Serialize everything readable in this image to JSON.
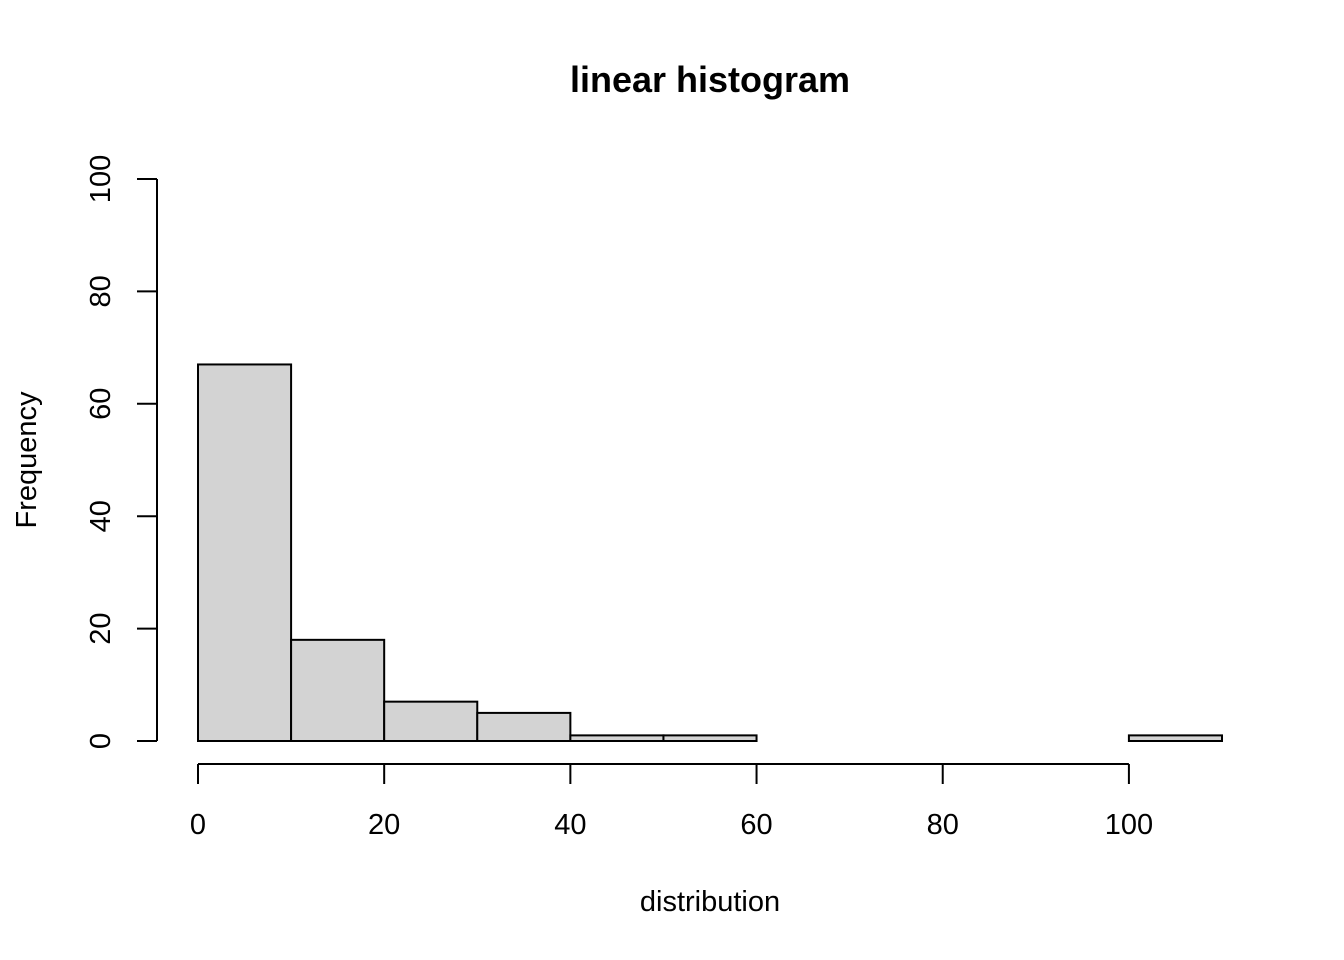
{
  "chart_data": {
    "type": "bar",
    "title": "linear histogram",
    "xlabel": "distribution",
    "ylabel": "Frequency",
    "xlim": [
      0,
      110
    ],
    "ylim": [
      0,
      100
    ],
    "xticks": [
      "0",
      "20",
      "40",
      "60",
      "80",
      "100"
    ],
    "yticks": [
      "0",
      "20",
      "40",
      "60",
      "80",
      "100"
    ],
    "bins": [
      {
        "from": 0,
        "to": 10,
        "count": 67
      },
      {
        "from": 10,
        "to": 20,
        "count": 18
      },
      {
        "from": 20,
        "to": 30,
        "count": 7
      },
      {
        "from": 30,
        "to": 40,
        "count": 5
      },
      {
        "from": 40,
        "to": 50,
        "count": 1
      },
      {
        "from": 50,
        "to": 60,
        "count": 1
      },
      {
        "from": 60,
        "to": 70,
        "count": 0
      },
      {
        "from": 70,
        "to": 80,
        "count": 0
      },
      {
        "from": 80,
        "to": 90,
        "count": 0
      },
      {
        "from": 90,
        "to": 100,
        "count": 0
      },
      {
        "from": 100,
        "to": 110,
        "count": 1
      }
    ],
    "bar_fill": "#d3d3d3",
    "bar_stroke": "#000000",
    "grid": false,
    "legend": "none"
  }
}
